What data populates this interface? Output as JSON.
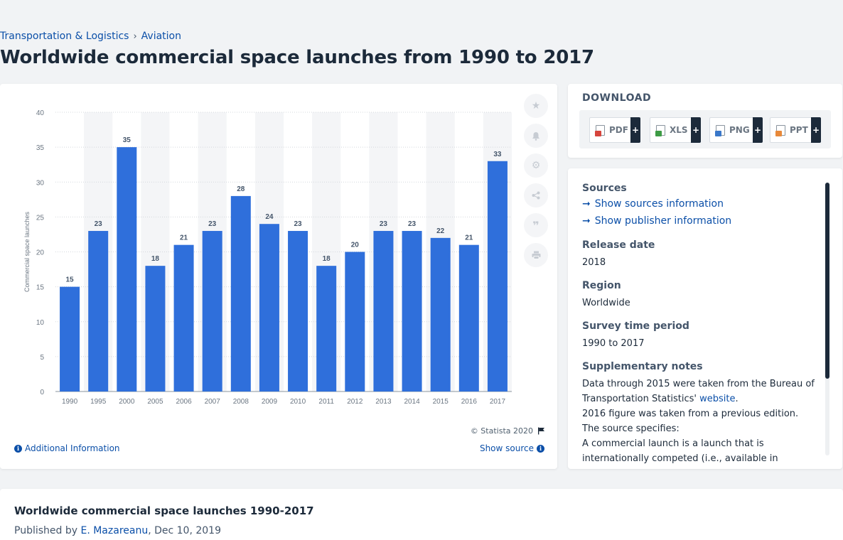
{
  "breadcrumb": {
    "items": [
      "Transportation & Logistics",
      "Aviation"
    ],
    "separator": "›"
  },
  "page_title": "Worldwide commercial space launches from 1990 to 2017",
  "chart": {
    "copyright": "© Statista 2020",
    "additional_info_label": "Additional Information",
    "show_source_label": "Show source",
    "bar_color": "#2f6fdb",
    "band_color": "#f4f5f7"
  },
  "chart_data": {
    "type": "bar",
    "categories": [
      "1990",
      "1995",
      "2000",
      "2005",
      "2006",
      "2007",
      "2008",
      "2009",
      "2010",
      "2011",
      "2012",
      "2013",
      "2014",
      "2015",
      "2016",
      "2017"
    ],
    "values": [
      15,
      23,
      35,
      18,
      21,
      23,
      28,
      24,
      23,
      18,
      20,
      23,
      23,
      22,
      21,
      33
    ],
    "title": "",
    "xlabel": "",
    "ylabel": "Commercial space launches",
    "ylim": [
      0,
      40
    ],
    "yticks": [
      0,
      5,
      10,
      15,
      20,
      25,
      30,
      35,
      40
    ],
    "data_labels": true,
    "grid": true,
    "legend": "none"
  },
  "tools": [
    "star-icon",
    "bell-icon",
    "gear-icon",
    "share-icon",
    "quote-icon",
    "print-icon"
  ],
  "download": {
    "heading": "DOWNLOAD",
    "buttons": [
      {
        "label": "PDF",
        "icon_color": "#d6453d",
        "plus": "+"
      },
      {
        "label": "XLS",
        "icon_color": "#3d9b45",
        "plus": "+"
      },
      {
        "label": "PNG",
        "icon_color": "#3a78c9",
        "plus": "+"
      },
      {
        "label": "PPT",
        "icon_color": "#e8893a",
        "plus": "+"
      }
    ]
  },
  "info": {
    "sources_label": "Sources",
    "show_sources": "Show sources information",
    "show_publisher": "Show publisher information",
    "release_date_label": "Release date",
    "release_date": "2018",
    "region_label": "Region",
    "region": "Worldwide",
    "survey_label": "Survey time period",
    "survey_period": "1990 to 2017",
    "notes_label": "Supplementary notes",
    "notes_line1_pre": "Data through 2015 were taken from the Bureau of Transportation Statistics'",
    "notes_line1_link": "website",
    "notes_line1_post": ".",
    "notes_line2": "2016 figure was taken from a previous edition.",
    "notes_line3": "The source specifies:",
    "notes_line4": "A commercial launch is a launch that is internationally competed (i.e., available in principle"
  },
  "bottom": {
    "title": "Worldwide commercial space launches 1990-2017",
    "published_by": "Published by",
    "author": "E. Mazareanu",
    "date": ", Dec 10, 2019"
  }
}
